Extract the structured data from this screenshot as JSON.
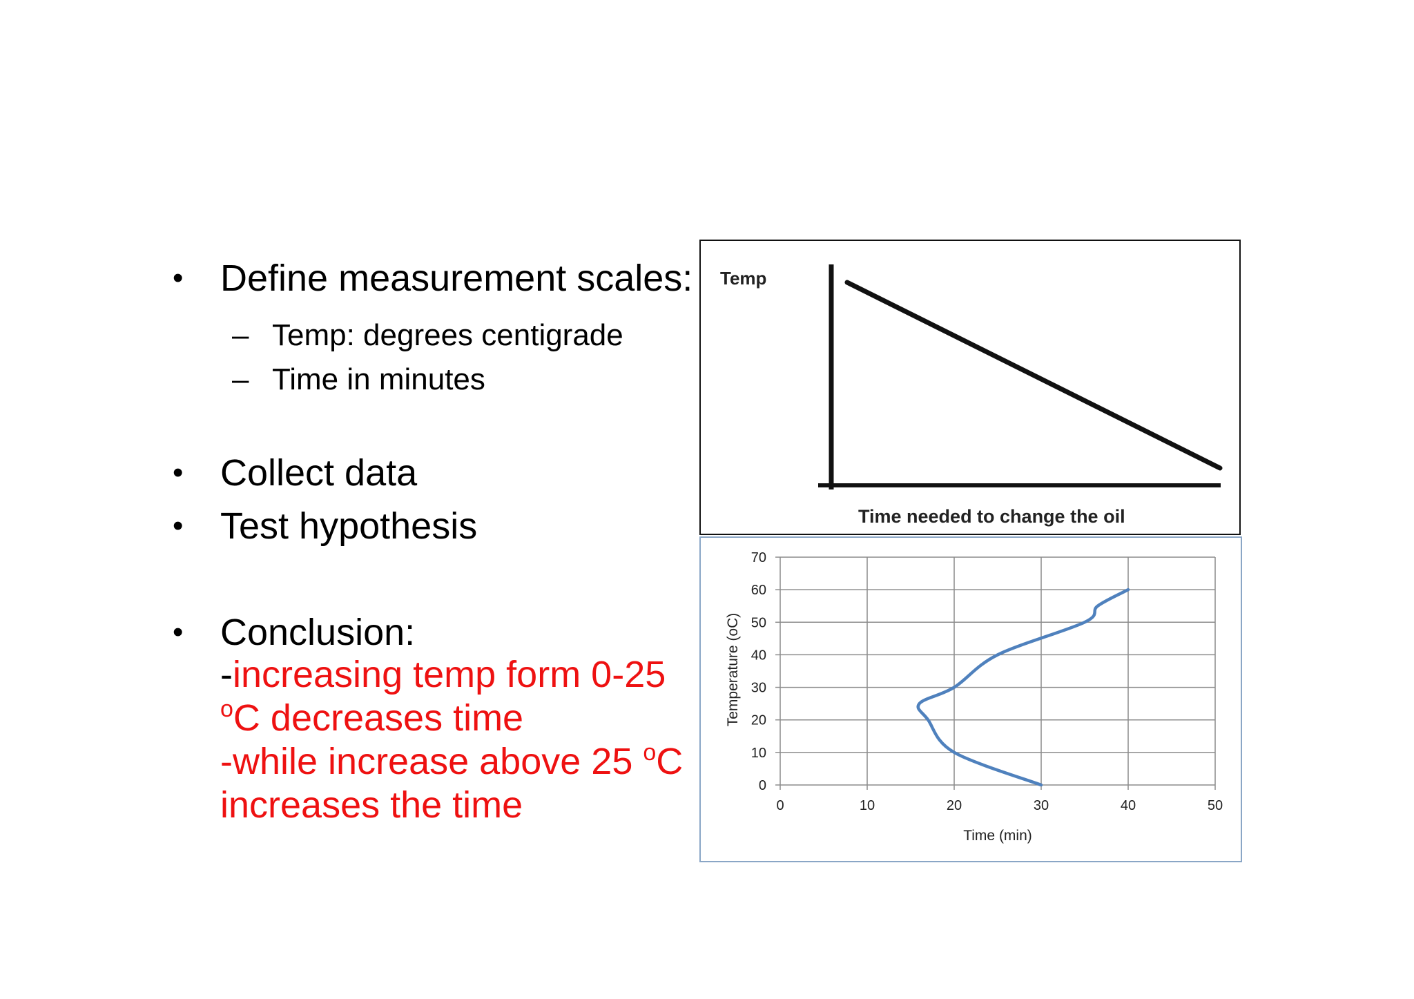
{
  "slide": {
    "bullets": [
      {
        "text": "Define measurement scales:",
        "sub": [
          "Temp: degrees centigrade",
          "Time in minutes"
        ]
      },
      {
        "text": "Collect data"
      },
      {
        "text": "Test hypothesis"
      },
      {
        "text": "Conclusion:"
      }
    ],
    "bullet_symbol": "•",
    "dash_symbol": "–",
    "conclusion": {
      "line1_prefix": "-",
      "line1_red": "increasing temp form 0-25",
      "line2_sup": "o",
      "line2_rest": "C decreases time",
      "line3_main": "-while increase above 25 ",
      "line3_sup": "o",
      "line3_rest": "C",
      "line4": "increases the time"
    },
    "colors": {
      "highlight": "#ee1111",
      "line": "#4f81bd"
    }
  },
  "sketch": {
    "y_label": "Temp",
    "x_label": "Time needed to change the oil"
  },
  "chart_data": {
    "type": "line",
    "xlabel": "Time (min)",
    "ylabel": "Temperature (oC)",
    "xlim": [
      0,
      50
    ],
    "ylim": [
      0,
      70
    ],
    "x_ticks": [
      0,
      10,
      20,
      30,
      40,
      50
    ],
    "y_ticks": [
      0,
      10,
      20,
      30,
      40,
      50,
      60,
      70
    ],
    "grid": true,
    "series": [
      {
        "points": [
          [
            30,
            0
          ],
          [
            20,
            10
          ],
          [
            17,
            20
          ],
          [
            16,
            25
          ],
          [
            20,
            30
          ],
          [
            25,
            40
          ],
          [
            35,
            50
          ],
          [
            36.5,
            55
          ],
          [
            40,
            60
          ]
        ]
      }
    ]
  }
}
